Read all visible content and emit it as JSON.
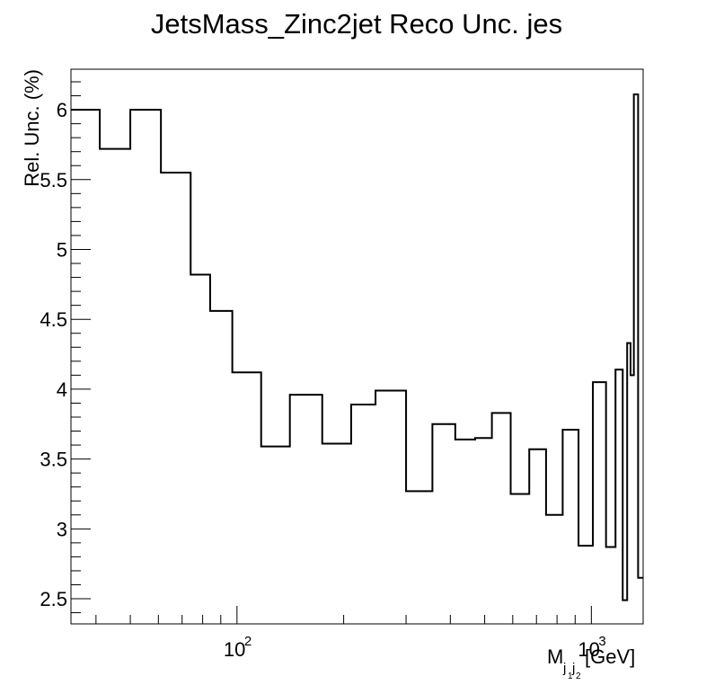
{
  "chart_data": {
    "type": "histogram-step",
    "title": "JetsMass_Zinc2jet Reco Unc. jes",
    "ylabel": "Rel. Unc. (%)",
    "xlabel": {
      "prefix": "M",
      "sub": "j",
      "subsub1": "1",
      "sub2": "j",
      "subsub2": "2",
      "unit": "[GeV]"
    },
    "x_scale": "log",
    "xlim": [
      34,
      1400
    ],
    "ylim": [
      2.32,
      6.29
    ],
    "x_ticks": [
      {
        "value": 100,
        "base": "10",
        "exp": "2"
      },
      {
        "value": 1000,
        "base": "10",
        "exp": "3"
      }
    ],
    "y_ticks": [
      {
        "value": 2.5,
        "label": "2.5"
      },
      {
        "value": 3,
        "label": "3"
      },
      {
        "value": 3.5,
        "label": "3.5"
      },
      {
        "value": 4,
        "label": "4"
      },
      {
        "value": 4.5,
        "label": "4.5"
      },
      {
        "value": 5,
        "label": "5"
      },
      {
        "value": 5.5,
        "label": "5.5"
      },
      {
        "value": 6,
        "label": "6"
      }
    ],
    "bins": [
      {
        "low": 34,
        "high": 41,
        "value": 6.0
      },
      {
        "low": 41,
        "high": 50,
        "value": 5.72
      },
      {
        "low": 50,
        "high": 61,
        "value": 6.0
      },
      {
        "low": 61,
        "high": 74,
        "value": 5.55
      },
      {
        "low": 74,
        "high": 84,
        "value": 4.82
      },
      {
        "low": 84,
        "high": 97,
        "value": 4.56
      },
      {
        "low": 97,
        "high": 117,
        "value": 4.12
      },
      {
        "low": 117,
        "high": 141,
        "value": 3.59
      },
      {
        "low": 141,
        "high": 174,
        "value": 3.96
      },
      {
        "low": 174,
        "high": 210,
        "value": 3.61
      },
      {
        "low": 210,
        "high": 246,
        "value": 3.89
      },
      {
        "low": 246,
        "high": 300,
        "value": 3.99
      },
      {
        "low": 300,
        "high": 356,
        "value": 3.27
      },
      {
        "low": 356,
        "high": 413,
        "value": 3.75
      },
      {
        "low": 413,
        "high": 470,
        "value": 3.64
      },
      {
        "low": 470,
        "high": 524,
        "value": 3.65
      },
      {
        "low": 524,
        "high": 592,
        "value": 3.83
      },
      {
        "low": 592,
        "high": 668,
        "value": 3.25
      },
      {
        "low": 668,
        "high": 745,
        "value": 3.57
      },
      {
        "low": 745,
        "high": 830,
        "value": 3.1
      },
      {
        "low": 830,
        "high": 920,
        "value": 3.71
      },
      {
        "low": 920,
        "high": 1010,
        "value": 2.88
      },
      {
        "low": 1010,
        "high": 1100,
        "value": 4.05
      },
      {
        "low": 1100,
        "high": 1170,
        "value": 2.87
      },
      {
        "low": 1170,
        "high": 1226,
        "value": 4.14
      },
      {
        "low": 1226,
        "high": 1262,
        "value": 2.49
      },
      {
        "low": 1262,
        "high": 1290,
        "value": 4.33
      },
      {
        "low": 1290,
        "high": 1318,
        "value": 4.1
      },
      {
        "low": 1318,
        "high": 1355,
        "value": 6.11
      },
      {
        "low": 1355,
        "high": 1400,
        "value": 2.65
      }
    ]
  }
}
